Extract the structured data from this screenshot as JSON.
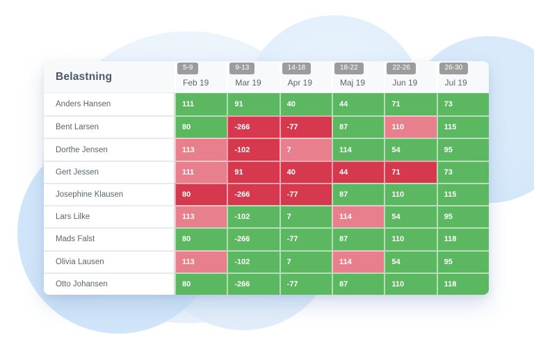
{
  "title": "Belastning",
  "colors": {
    "green": "#5cb860",
    "red": "#d6394e",
    "pink": "#e87f8c",
    "badge_gray": "#9c9c9c"
  },
  "columns": [
    {
      "weeks": "5-9",
      "month": "Feb 19"
    },
    {
      "weeks": "9-13",
      "month": "Mar 19"
    },
    {
      "weeks": "14-18",
      "month": "Apr 19"
    },
    {
      "weeks": "18-22",
      "month": "Maj 19"
    },
    {
      "weeks": "22-26",
      "month": "Jun 19"
    },
    {
      "weeks": "26-30",
      "month": "Jul 19"
    }
  ],
  "rows": [
    {
      "name": "Anders Hansen",
      "cells": [
        {
          "value": 111,
          "status": "green"
        },
        {
          "value": 91,
          "status": "green"
        },
        {
          "value": 40,
          "status": "green"
        },
        {
          "value": 44,
          "status": "green"
        },
        {
          "value": 71,
          "status": "green"
        },
        {
          "value": 73,
          "status": "green"
        }
      ]
    },
    {
      "name": "Bent Larsen",
      "cells": [
        {
          "value": 80,
          "status": "green"
        },
        {
          "value": -266,
          "status": "red"
        },
        {
          "value": -77,
          "status": "red"
        },
        {
          "value": 87,
          "status": "green"
        },
        {
          "value": 110,
          "status": "pink"
        },
        {
          "value": 115,
          "status": "green"
        }
      ]
    },
    {
      "name": "Dorthe Jensen",
      "cells": [
        {
          "value": 113,
          "status": "pink"
        },
        {
          "value": -102,
          "status": "red"
        },
        {
          "value": 7,
          "status": "pink"
        },
        {
          "value": 114,
          "status": "green"
        },
        {
          "value": 54,
          "status": "green"
        },
        {
          "value": 95,
          "status": "green"
        }
      ]
    },
    {
      "name": "Gert Jessen",
      "cells": [
        {
          "value": 111,
          "status": "pink"
        },
        {
          "value": 91,
          "status": "red"
        },
        {
          "value": 40,
          "status": "red"
        },
        {
          "value": 44,
          "status": "red"
        },
        {
          "value": 71,
          "status": "red"
        },
        {
          "value": 73,
          "status": "green"
        }
      ]
    },
    {
      "name": "Josephine Klausen",
      "cells": [
        {
          "value": 80,
          "status": "red"
        },
        {
          "value": -266,
          "status": "red"
        },
        {
          "value": -77,
          "status": "red"
        },
        {
          "value": 87,
          "status": "green"
        },
        {
          "value": 110,
          "status": "green"
        },
        {
          "value": 115,
          "status": "green"
        }
      ]
    },
    {
      "name": "Lars Lilke",
      "cells": [
        {
          "value": 113,
          "status": "pink"
        },
        {
          "value": -102,
          "status": "green"
        },
        {
          "value": 7,
          "status": "green"
        },
        {
          "value": 114,
          "status": "pink"
        },
        {
          "value": 54,
          "status": "green"
        },
        {
          "value": 95,
          "status": "green"
        }
      ]
    },
    {
      "name": "Mads Falst",
      "cells": [
        {
          "value": 80,
          "status": "green"
        },
        {
          "value": -266,
          "status": "green"
        },
        {
          "value": -77,
          "status": "green"
        },
        {
          "value": 87,
          "status": "green"
        },
        {
          "value": 110,
          "status": "green"
        },
        {
          "value": 118,
          "status": "green"
        }
      ]
    },
    {
      "name": "Olivia Lausen",
      "cells": [
        {
          "value": 113,
          "status": "pink"
        },
        {
          "value": -102,
          "status": "green"
        },
        {
          "value": 7,
          "status": "green"
        },
        {
          "value": 114,
          "status": "pink"
        },
        {
          "value": 54,
          "status": "green"
        },
        {
          "value": 95,
          "status": "green"
        }
      ]
    },
    {
      "name": "Otto Johansen",
      "cells": [
        {
          "value": 80,
          "status": "green"
        },
        {
          "value": -266,
          "status": "green"
        },
        {
          "value": -77,
          "status": "green"
        },
        {
          "value": 87,
          "status": "green"
        },
        {
          "value": 110,
          "status": "green"
        },
        {
          "value": 118,
          "status": "green"
        }
      ]
    }
  ]
}
